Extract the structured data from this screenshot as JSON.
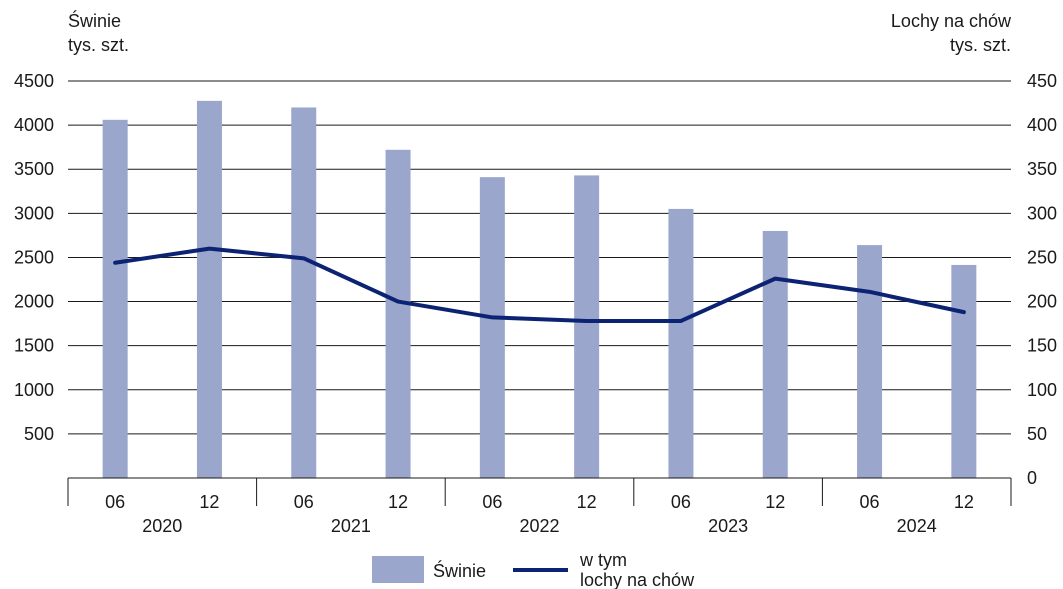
{
  "chart_data": {
    "type": "bar",
    "left_axis_title": [
      "Świnie",
      "tys. szt."
    ],
    "right_axis_title": [
      "Lochy na chów",
      "tys. szt."
    ],
    "categories": [
      "06",
      "12",
      "06",
      "12",
      "06",
      "12",
      "06",
      "12",
      "06",
      "12"
    ],
    "years": [
      "2020",
      "2021",
      "2022",
      "2023",
      "2024"
    ],
    "ylim_left": [
      0,
      4500
    ],
    "ylim_right": [
      0,
      450
    ],
    "yticks_left": [
      "500",
      "1000",
      "1500",
      "2000",
      "2500",
      "3000",
      "3500",
      "4000",
      "4500"
    ],
    "yticks_right": [
      "0",
      "50",
      "100",
      "150",
      "200",
      "250",
      "300",
      "350",
      "400",
      "450"
    ],
    "grid": true,
    "series": [
      {
        "name": "Świnie",
        "kind": "bar",
        "axis": "left",
        "color": "#9aa6cb",
        "values": [
          4060,
          4275,
          4200,
          3720,
          3410,
          3430,
          3050,
          2800,
          2640,
          2415
        ]
      },
      {
        "name": "w tym lochy na chów",
        "legend_lines": [
          "w tym",
          "lochy na chów"
        ],
        "kind": "line",
        "axis": "right",
        "color": "#0c2273",
        "values": [
          244,
          260,
          249,
          200,
          182,
          178,
          178,
          226,
          211,
          188
        ]
      }
    ],
    "legend_position": "bottom-center"
  }
}
